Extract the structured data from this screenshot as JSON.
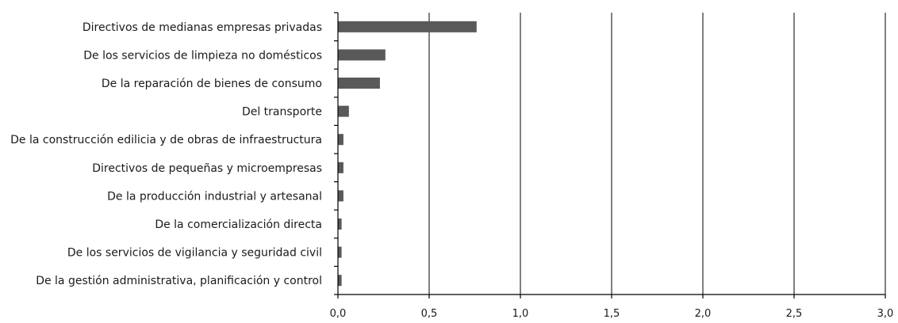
{
  "chart_data": {
    "type": "bar",
    "orientation": "horizontal",
    "categories": [
      "Directivos de medianas empresas privadas",
      "De los servicios de limpieza no domésticos",
      "De la reparación de bienes de consumo",
      "Del transporte",
      "De la construcción edilicia y de obras de infraestructura",
      "Directivos de pequeñas y microempresas",
      "De la producción industrial y artesanal",
      "De la comercialización directa",
      "De los servicios de vigilancia y seguridad civil",
      "De la gestión administrativa, planificación y control"
    ],
    "values": [
      0.76,
      0.26,
      0.23,
      0.06,
      0.03,
      0.03,
      0.03,
      0.02,
      0.02,
      0.02
    ],
    "xlim": [
      0,
      3.0
    ],
    "xticks": [
      "0,0",
      "0,5",
      "1,0",
      "1,5",
      "2,0",
      "2,5",
      "3,0"
    ],
    "xtick_values": [
      0,
      0.5,
      1.0,
      1.5,
      2.0,
      2.5,
      3.0
    ],
    "grid": "vertical",
    "bar_color": "#595959",
    "legend": "none"
  }
}
